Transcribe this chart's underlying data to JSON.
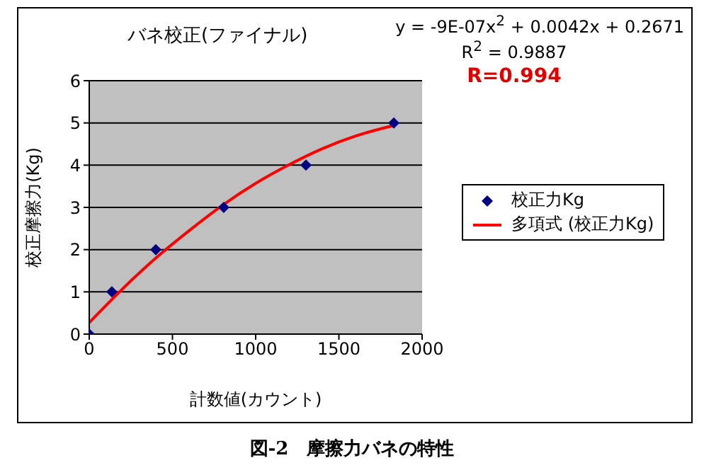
{
  "chart_data": {
    "type": "scatter",
    "title": "バネ校正(ファイナル)",
    "xlabel": "計数値(カウント)",
    "ylabel": "校正摩擦力(Kg)",
    "annotations": [
      "y = -9E-07x$^{2}$ + 0.0042x + 0.2671",
      "R$^{2}$ = 0.9887",
      "R=0.994",
      "図-2　摩擦力バネの特性"
    ],
    "series": [
      {
        "name": "校正力Kg",
        "type": "scatter",
        "color": "#000080",
        "marker": "diamond",
        "x": [
          0,
          136,
          400,
          808,
          1302,
          1830
        ],
        "values": [
          0,
          1,
          2,
          3,
          4,
          5
        ]
      },
      {
        "name": "多項式 (校正力Kg)",
        "type": "line",
        "color": "#ff0000",
        "x": [
          0,
          200,
          400,
          600,
          800,
          1000,
          1200,
          1400,
          1600,
          1830
        ],
        "values": [
          0.27,
          1.07,
          1.8,
          2.45,
          3.05,
          3.57,
          4.01,
          4.39,
          4.69,
          4.94
        ]
      }
    ],
    "xlim": [
      0,
      2000
    ],
    "xticks": [
      0,
      500,
      1000,
      1500,
      2000
    ],
    "ylim": [
      0,
      6
    ],
    "yticks": [
      0,
      1,
      2,
      3,
      4,
      5,
      6
    ],
    "grid": "y",
    "legend": "right"
  }
}
